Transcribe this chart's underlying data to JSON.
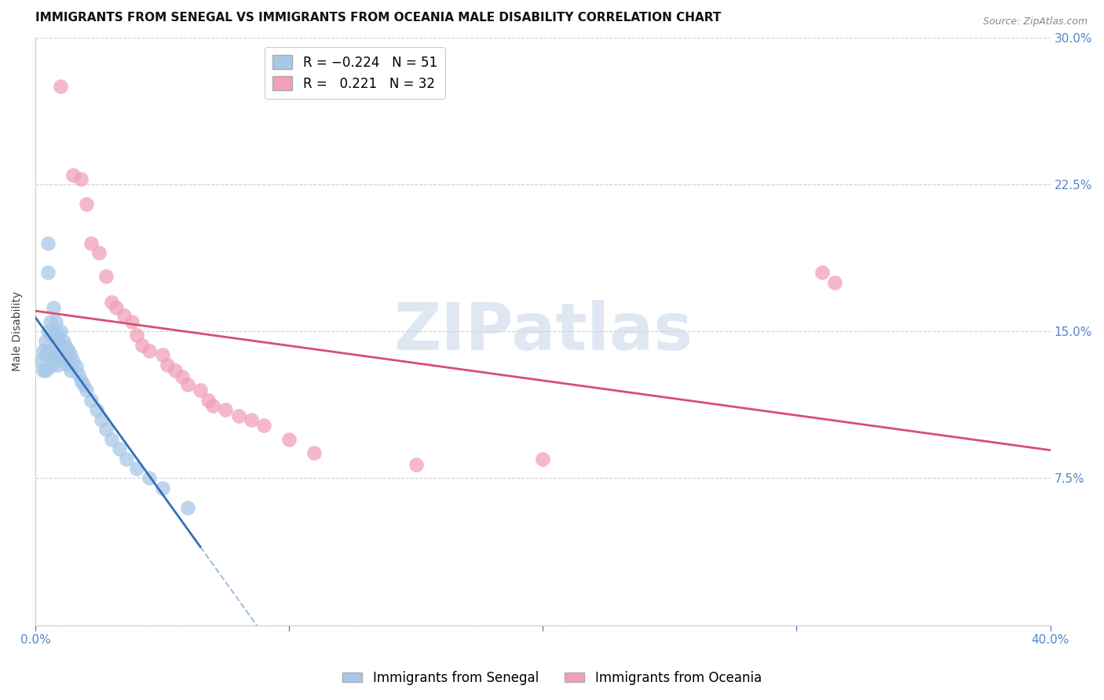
{
  "title": "IMMIGRANTS FROM SENEGAL VS IMMIGRANTS FROM OCEANIA MALE DISABILITY CORRELATION CHART",
  "source": "Source: ZipAtlas.com",
  "ylabel": "Male Disability",
  "xlim": [
    0.0,
    0.4
  ],
  "ylim": [
    0.0,
    0.3
  ],
  "yticks": [
    0.0,
    0.075,
    0.15,
    0.225,
    0.3
  ],
  "xticks": [
    0.0,
    0.1,
    0.2,
    0.3,
    0.4
  ],
  "senegal_R": -0.224,
  "senegal_N": 51,
  "oceania_R": 0.221,
  "oceania_N": 32,
  "background_color": "#ffffff",
  "grid_color": "#d0d0d0",
  "watermark": "ZIPatlas",
  "watermark_color": "#c8d8ea",
  "senegal_color": "#a8c8e8",
  "oceania_color": "#f0a0b8",
  "senegal_line_color": "#3070b8",
  "oceania_line_color": "#d85070",
  "title_fontsize": 11,
  "axis_label_fontsize": 10,
  "tick_fontsize": 11,
  "legend_fontsize": 12,
  "senegal_x": [
    0.002,
    0.003,
    0.003,
    0.004,
    0.004,
    0.004,
    0.005,
    0.005,
    0.005,
    0.005,
    0.006,
    0.006,
    0.006,
    0.006,
    0.007,
    0.007,
    0.007,
    0.008,
    0.008,
    0.008,
    0.009,
    0.009,
    0.009,
    0.01,
    0.01,
    0.01,
    0.011,
    0.011,
    0.012,
    0.012,
    0.013,
    0.013,
    0.014,
    0.014,
    0.015,
    0.016,
    0.017,
    0.018,
    0.019,
    0.02,
    0.022,
    0.024,
    0.026,
    0.028,
    0.03,
    0.033,
    0.036,
    0.04,
    0.045,
    0.05,
    0.06
  ],
  "senegal_y": [
    0.135,
    0.14,
    0.13,
    0.145,
    0.138,
    0.13,
    0.195,
    0.18,
    0.15,
    0.14,
    0.155,
    0.148,
    0.138,
    0.132,
    0.162,
    0.148,
    0.136,
    0.155,
    0.145,
    0.135,
    0.148,
    0.14,
    0.133,
    0.15,
    0.143,
    0.136,
    0.145,
    0.138,
    0.142,
    0.135,
    0.14,
    0.133,
    0.138,
    0.13,
    0.135,
    0.132,
    0.128,
    0.125,
    0.123,
    0.12,
    0.115,
    0.11,
    0.105,
    0.1,
    0.095,
    0.09,
    0.085,
    0.08,
    0.075,
    0.07,
    0.06
  ],
  "oceania_x": [
    0.01,
    0.015,
    0.018,
    0.02,
    0.022,
    0.025,
    0.028,
    0.03,
    0.032,
    0.035,
    0.038,
    0.04,
    0.042,
    0.045,
    0.05,
    0.052,
    0.055,
    0.058,
    0.06,
    0.065,
    0.068,
    0.07,
    0.075,
    0.08,
    0.085,
    0.09,
    0.1,
    0.11,
    0.15,
    0.2,
    0.31,
    0.315
  ],
  "oceania_y": [
    0.275,
    0.23,
    0.228,
    0.215,
    0.195,
    0.19,
    0.178,
    0.165,
    0.162,
    0.158,
    0.155,
    0.148,
    0.143,
    0.14,
    0.138,
    0.133,
    0.13,
    0.127,
    0.123,
    0.12,
    0.115,
    0.112,
    0.11,
    0.107,
    0.105,
    0.102,
    0.095,
    0.088,
    0.082,
    0.085,
    0.18,
    0.175
  ]
}
